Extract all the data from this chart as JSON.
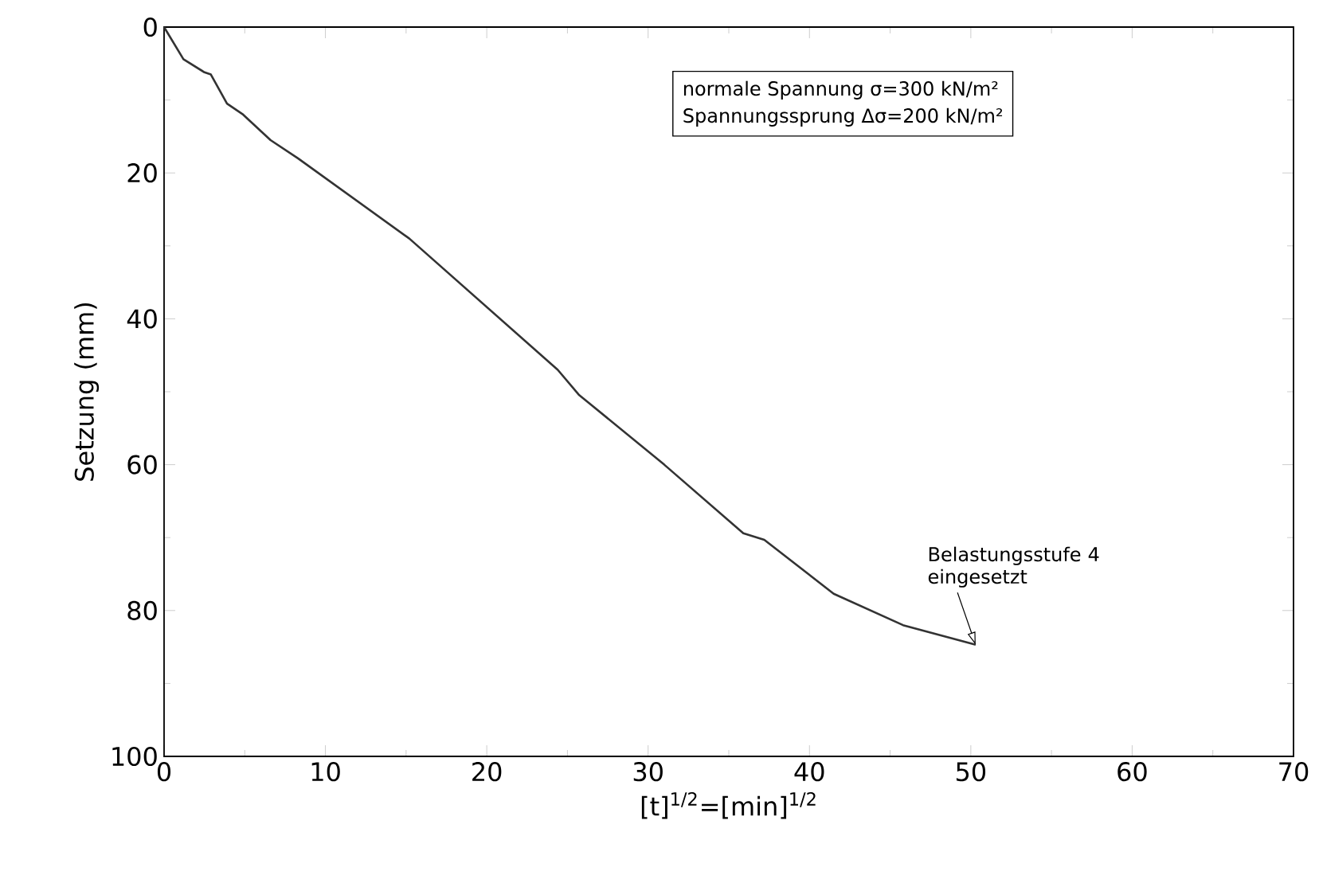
{
  "chart_data": {
    "type": "line",
    "xlabel": "[t]$^{1/2}$=[min]$^{1/2}$",
    "ylabel": "Setzung (mm)",
    "x": [
      0,
      1.2,
      2.5,
      2.9,
      3.9,
      4.9,
      6.6,
      8.3,
      15.2,
      24.4,
      25.7,
      31,
      35.9,
      37.2,
      41.5,
      45.8,
      50.3
    ],
    "series": [
      {
        "color": "#333333",
        "values": [
          0,
          4.4,
          6.2,
          6.5,
          10.5,
          12,
          15.5,
          18,
          29,
          47,
          50.4,
          60,
          69.4,
          70.3,
          77.7,
          82,
          84.7
        ]
      }
    ],
    "xlim": [
      0,
      70
    ],
    "ylim": [
      100,
      0
    ],
    "xticks": [
      0,
      10,
      20,
      30,
      40,
      50,
      60,
      70
    ],
    "yticks": [
      0,
      20,
      40,
      60,
      80,
      100
    ],
    "annotations": [
      "normale Spannung σ=300 kN/m²",
      "Spannungssprung Δσ=200 kN/m²",
      {
        "text": "Belastungsstufe 4 eingesetzt",
        "x": 50.3,
        "y": 84.7
      }
    ],
    "grid": false,
    "marker": "none",
    "line_style": "solid"
  }
}
